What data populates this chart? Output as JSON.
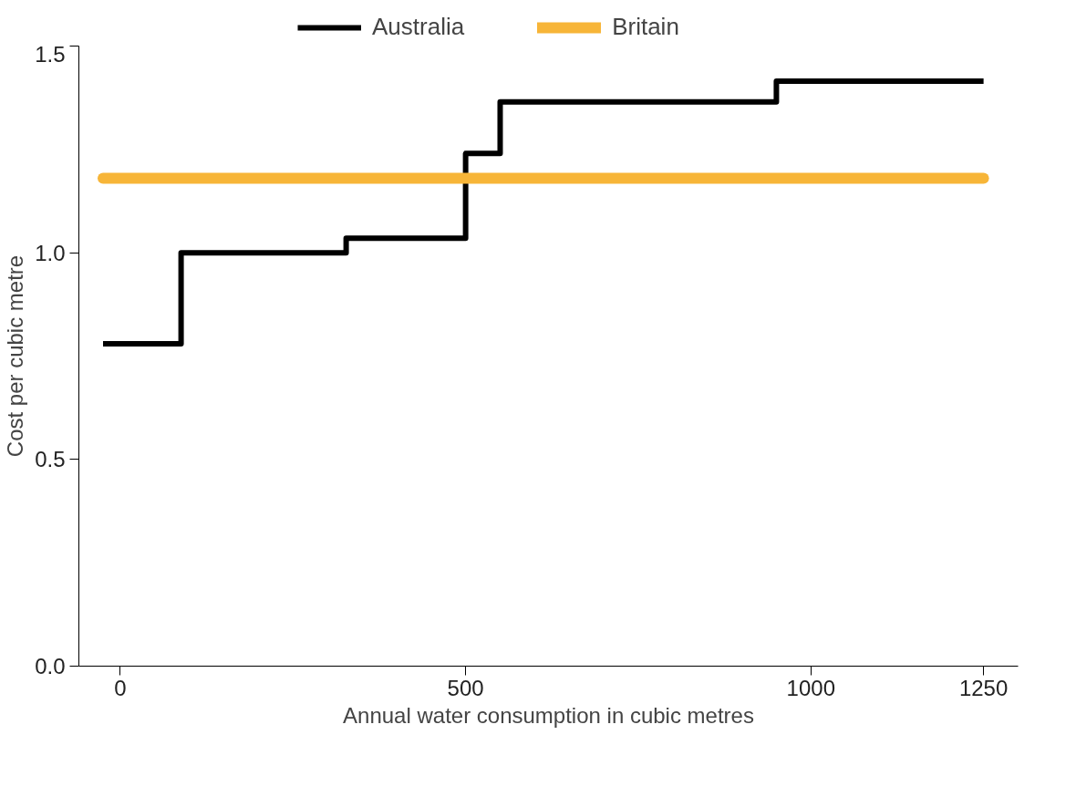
{
  "chart_data": {
    "type": "step",
    "xlabel": "Annual water consumption in cubic metres",
    "ylabel": "Cost per cubic metre",
    "xlim": [
      -60,
      1300
    ],
    "xticks": [
      0,
      500,
      1000,
      1250
    ],
    "ylim": [
      0,
      1.5
    ],
    "yticks": [
      {
        "value": 0,
        "label": "0.0"
      },
      {
        "value": 0.5,
        "label": "0.5"
      },
      {
        "value": 1,
        "label": "1.0"
      },
      {
        "value": 1.5,
        "label": "1.5"
      }
    ],
    "series": [
      {
        "name": "Australia",
        "color": "#000000",
        "x": [
          -25,
          88,
          327,
          500,
          550,
          950,
          1250
        ],
        "values": [
          0.78,
          1.0,
          1.035,
          1.24,
          1.365,
          1.415,
          1.415
        ]
      },
      {
        "name": "Britain",
        "color": "#f7b538",
        "type": "line",
        "x": [
          -25,
          1250
        ],
        "values": [
          1.18,
          1.18
        ]
      }
    ],
    "grid": false,
    "legend": "top",
    "line_style": "solid"
  }
}
